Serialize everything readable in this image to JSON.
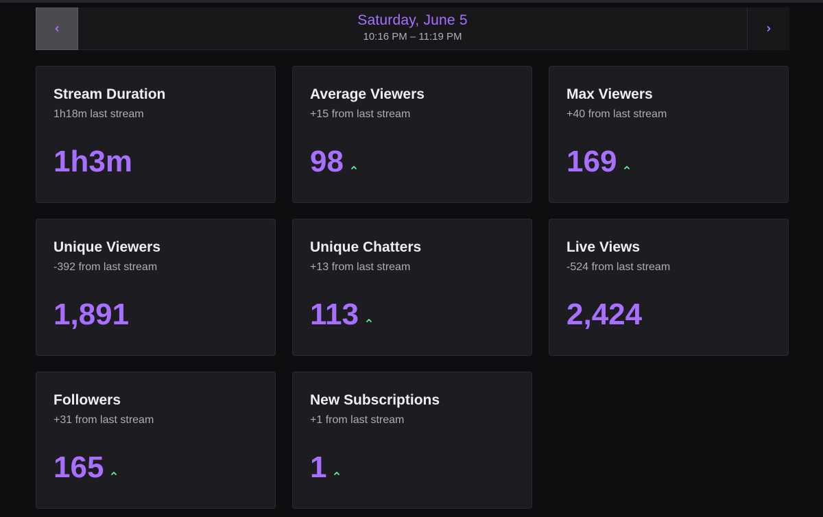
{
  "header": {
    "date": "Saturday, June 5",
    "time_range": "10:16 PM – 11:19 PM",
    "prev_icon": "chevron-left-icon",
    "next_icon": "chevron-right-icon"
  },
  "colors": {
    "accent": "#a970ff",
    "trend_up": "#5cf2a0",
    "card_bg": "#1c1c21",
    "page_bg": "#0e0e10"
  },
  "stats": [
    {
      "id": "stream-duration",
      "title": "Stream Duration",
      "subtitle": "1h18m last stream",
      "value": "1h3m",
      "trend": "none"
    },
    {
      "id": "average-viewers",
      "title": "Average Viewers",
      "subtitle": "+15 from last stream",
      "value": "98",
      "trend": "up"
    },
    {
      "id": "max-viewers",
      "title": "Max Viewers",
      "subtitle": "+40 from last stream",
      "value": "169",
      "trend": "up"
    },
    {
      "id": "unique-viewers",
      "title": "Unique Viewers",
      "subtitle": "-392 from last stream",
      "value": "1,891",
      "trend": "none"
    },
    {
      "id": "unique-chatters",
      "title": "Unique Chatters",
      "subtitle": "+13 from last stream",
      "value": "113",
      "trend": "up"
    },
    {
      "id": "live-views",
      "title": "Live Views",
      "subtitle": "-524 from last stream",
      "value": "2,424",
      "trend": "none"
    },
    {
      "id": "followers",
      "title": "Followers",
      "subtitle": "+31 from last stream",
      "value": "165",
      "trend": "up"
    },
    {
      "id": "new-subscriptions",
      "title": "New Subscriptions",
      "subtitle": "+1 from last stream",
      "value": "1",
      "trend": "up"
    }
  ]
}
